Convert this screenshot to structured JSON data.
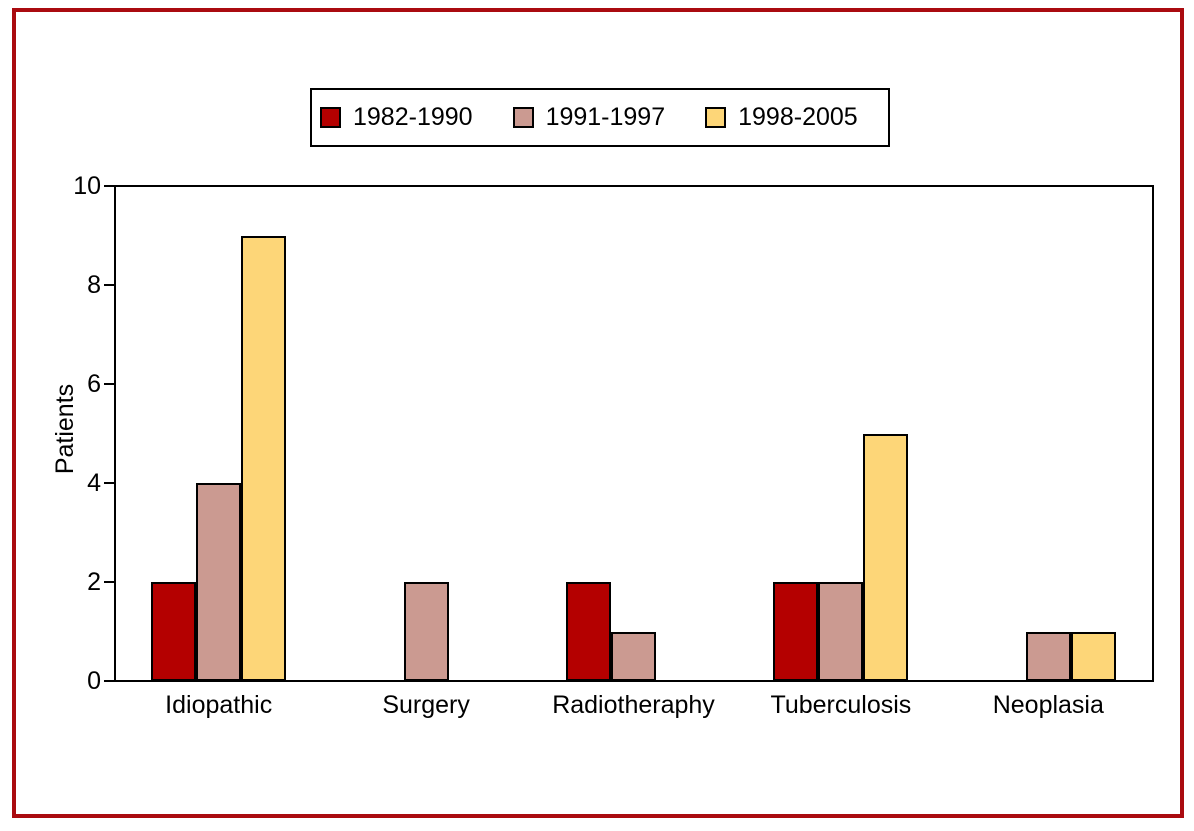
{
  "figure": {
    "border_color": "#AA0B10",
    "background_color": "#FFFFFF",
    "outline_color": "#000000"
  },
  "chart_data": {
    "type": "bar",
    "title": "",
    "xlabel": "",
    "ylabel": "Patients",
    "categories": [
      "Idiopathic",
      "Surgery",
      "Radiotheraphy",
      "Tuberculosis",
      "Neoplasia"
    ],
    "series": [
      {
        "name": "1982-1990",
        "color": "#B40000",
        "values": [
          2,
          null,
          2,
          2,
          null
        ]
      },
      {
        "name": "1991-1997",
        "color": "#CB9A91",
        "values": [
          4,
          2,
          1,
          2,
          1
        ]
      },
      {
        "name": "1998-2005",
        "color": "#FDD678",
        "values": [
          9,
          null,
          null,
          5,
          1
        ]
      }
    ],
    "ylim": [
      0,
      10
    ],
    "yticks": [
      0,
      2,
      4,
      6,
      8,
      10
    ],
    "grid": false,
    "legend_position": "top-center",
    "bar_outline_color": "#000000"
  }
}
